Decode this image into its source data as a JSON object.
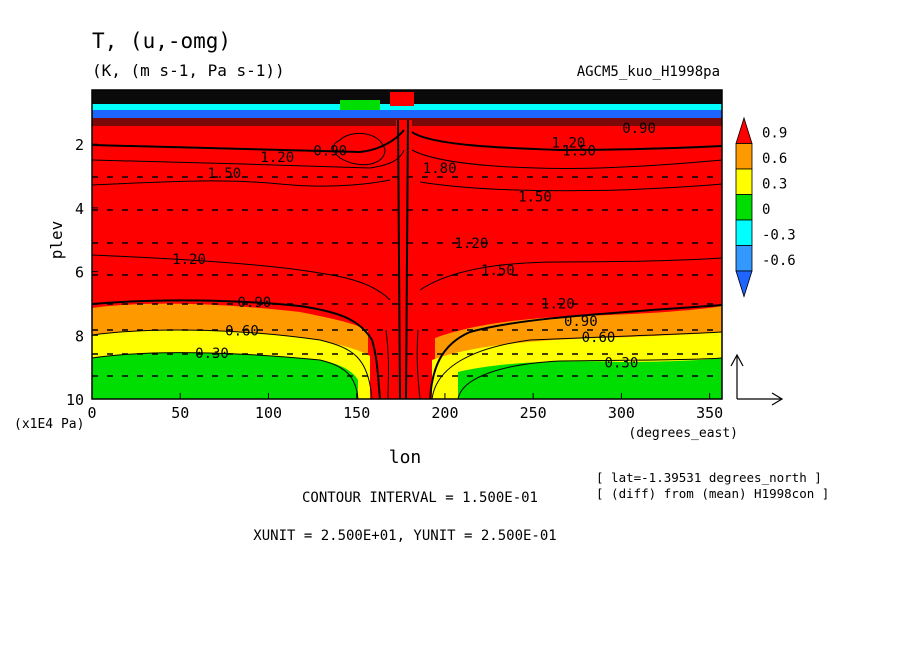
{
  "header": {
    "title": "T, (u,-omg)",
    "units": "(K, (m s-1, Pa s-1))",
    "experiment": "AGCM5_kuo_H1998pa"
  },
  "chart_data": {
    "type": "heatmap",
    "xlabel": "lon",
    "xunit": "(degrees_east)",
    "ylabel": "plev",
    "yunit": "(x1E4 Pa)",
    "xlim": [
      0,
      357
    ],
    "ylim": [
      10,
      0.3
    ],
    "xticks": [
      "0",
      "50",
      "100",
      "150",
      "200",
      "250",
      "300",
      "350"
    ],
    "xtick_values": [
      0,
      50,
      100,
      150,
      200,
      250,
      300,
      350
    ],
    "yticks": [
      "2",
      "4",
      "6",
      "8",
      "10"
    ],
    "ytick_values": [
      2,
      4,
      6,
      8,
      10
    ],
    "colorbar": {
      "labels": [
        "0.9",
        "0.6",
        "0.3",
        "0",
        "-0.3",
        "-0.6"
      ],
      "colors": [
        "#ff0000",
        "#ff9900",
        "#ffff00",
        "#00dd00",
        "#00ffff",
        "#3399ff",
        "#1e64ff"
      ]
    },
    "contour_labels": [
      {
        "text": "1.20",
        "lon": 105,
        "p": 2.4
      },
      {
        "text": "0.90",
        "lon": 135,
        "p": 2.2
      },
      {
        "text": "1.50",
        "lon": 75,
        "p": 2.9
      },
      {
        "text": "1.80",
        "lon": 197,
        "p": 2.75
      },
      {
        "text": "1.50",
        "lon": 251,
        "p": 3.65
      },
      {
        "text": "1.20",
        "lon": 215,
        "p": 5.1
      },
      {
        "text": "1.50",
        "lon": 230,
        "p": 5.95
      },
      {
        "text": "1.20",
        "lon": 55,
        "p": 5.6
      },
      {
        "text": "1.20",
        "lon": 264,
        "p": 7.0
      },
      {
        "text": "1.20",
        "lon": 270,
        "p": 1.95
      },
      {
        "text": "1.50",
        "lon": 276,
        "p": 2.2
      },
      {
        "text": "0.90",
        "lon": 310,
        "p": 1.5
      },
      {
        "text": "0.90",
        "lon": 92,
        "p": 6.95
      },
      {
        "text": "0.90",
        "lon": 277,
        "p": 7.55
      },
      {
        "text": "0.60",
        "lon": 85,
        "p": 7.85
      },
      {
        "text": "0.60",
        "lon": 287,
        "p": 8.05
      },
      {
        "text": "0.30",
        "lon": 68,
        "p": 8.55
      },
      {
        "text": "0.30",
        "lon": 300,
        "p": 8.85
      }
    ]
  },
  "footer": {
    "contour_interval": "CONTOUR INTERVAL = 1.500E-01",
    "units": "XUNIT = 2.500E+01, YUNIT = 2.500E-01",
    "lat": "[ lat=-1.39531 degrees_north ]",
    "diff": "[ (diff) from (mean) H1998con ]"
  }
}
